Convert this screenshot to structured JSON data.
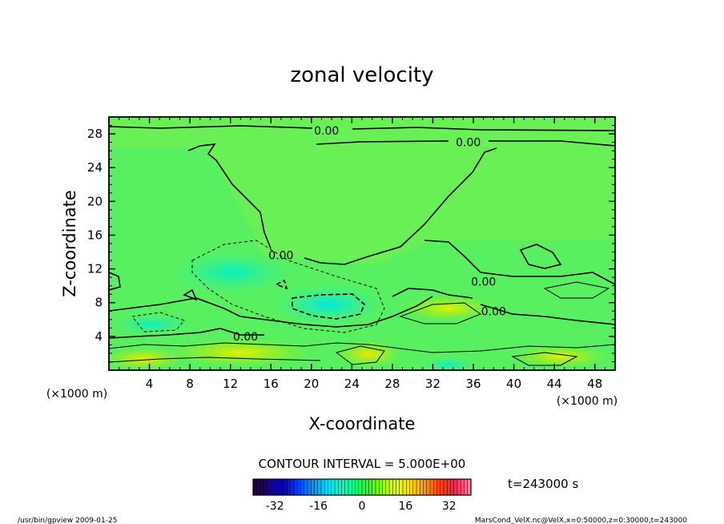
{
  "chart_data": {
    "type": "heatmap",
    "title": "zonal velocity",
    "xlabel": "X-coordinate",
    "ylabel": "Z-coordinate",
    "x_unit": "(×1000 m)",
    "z_unit": "(×1000 m)",
    "xlim": [
      0,
      50
    ],
    "ylim": [
      0,
      30
    ],
    "x_ticks": [
      4,
      8,
      12,
      16,
      20,
      24,
      28,
      32,
      36,
      40,
      44,
      48
    ],
    "y_ticks": [
      4,
      8,
      12,
      16,
      20,
      24,
      28
    ],
    "contour_interval_text": "CONTOUR INTERVAL = 5.000E+00",
    "time_text": "t=243000 s",
    "colorbar": {
      "min": -40,
      "max": 40,
      "ticks": [
        -32,
        -16,
        0,
        16,
        32
      ],
      "colors": [
        "#24003a",
        "#1a0080",
        "#0000d0",
        "#0040ff",
        "#0090ff",
        "#00d8ff",
        "#00ffd0",
        "#00ff80",
        "#30ff20",
        "#a0ff00",
        "#e8ff00",
        "#ffd800",
        "#ff9000",
        "#ff4000",
        "#ff2050",
        "#ff80a0"
      ]
    },
    "contour_labels": [
      {
        "x": 21.5,
        "z": 28.4,
        "text": "0.00"
      },
      {
        "x": 35.5,
        "z": 27.0,
        "text": "0.00"
      },
      {
        "x": 17.0,
        "z": 13.6,
        "text": "0.00"
      },
      {
        "x": 37.0,
        "z": 10.5,
        "text": "0.00"
      },
      {
        "x": 38.0,
        "z": 7.0,
        "text": "0.00"
      },
      {
        "x": 13.5,
        "z": 4.0,
        "text": "0.00"
      }
    ]
  },
  "footer": {
    "left": "/usr/bin/gpview   2009-01-25",
    "right": "MarsCond_VelX.nc@VelX,x=0:50000,z=0:30000,t=243000"
  }
}
